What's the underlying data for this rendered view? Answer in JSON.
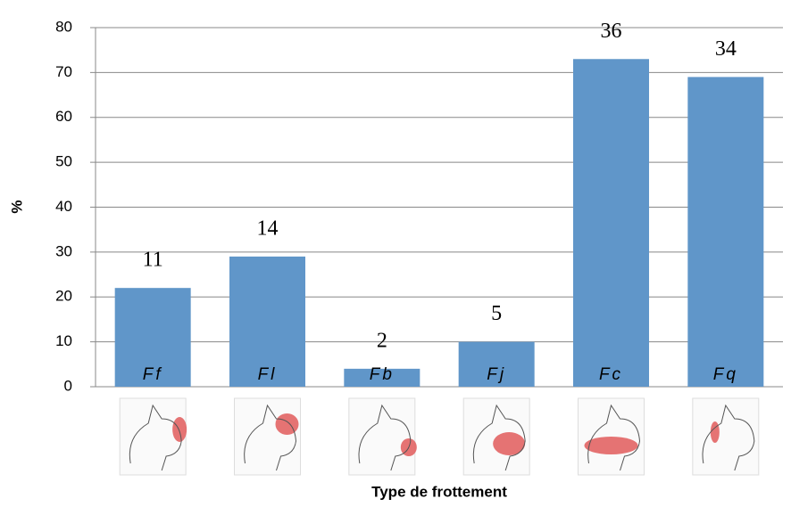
{
  "chart_data": {
    "type": "bar",
    "x_label": "Type de frottement",
    "y_label": "%",
    "categories": [
      "Ff",
      "Fl",
      "Fb",
      "Fj",
      "Fc",
      "Fq"
    ],
    "values": [
      22,
      29,
      4,
      10,
      73,
      69
    ],
    "counts": [
      11,
      14,
      2,
      5,
      36,
      34
    ],
    "color": "#6096c9",
    "ylim": [
      0,
      80
    ],
    "yticks": [
      0,
      10,
      20,
      30,
      40,
      50,
      60,
      70,
      80
    ],
    "grid": true
  }
}
